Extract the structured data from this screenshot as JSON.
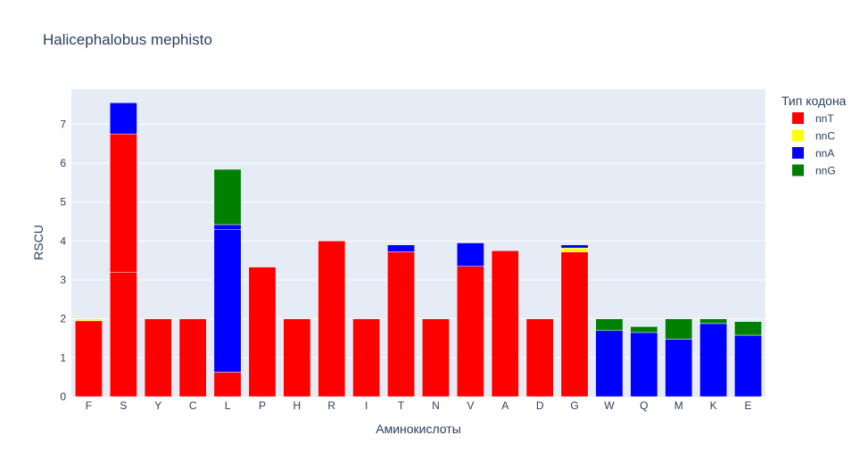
{
  "chart_data": {
    "type": "bar",
    "barmode": "stack",
    "title": "Halicephalobus mephisto",
    "xlabel": "Аминокислоты",
    "ylabel": "RSCU",
    "ylim": [
      0,
      7.9
    ],
    "yticks": [
      0,
      1,
      2,
      3,
      4,
      5,
      6,
      7
    ],
    "grid": true,
    "legend": {
      "title": "Тип кодона",
      "position": "top-right"
    },
    "categories": [
      "F",
      "S",
      "Y",
      "C",
      "L",
      "P",
      "H",
      "R",
      "I",
      "T",
      "N",
      "V",
      "A",
      "D",
      "G",
      "W",
      "Q",
      "M",
      "K",
      "E"
    ],
    "series": [
      {
        "name": "nnT",
        "color": "#ff0000",
        "segments": [
          [
            1.95
          ],
          [
            3.2,
            3.55
          ],
          [
            2.0
          ],
          [
            2.0
          ],
          [
            0.63
          ],
          [
            3.33
          ],
          [
            2.0
          ],
          [
            4.0
          ],
          [
            2.0
          ],
          [
            3.72
          ],
          [
            2.0
          ],
          [
            3.35
          ],
          [
            3.75
          ],
          [
            2.0
          ],
          [
            3.72
          ],
          [],
          [],
          [],
          [],
          []
        ]
      },
      {
        "name": "nnC",
        "color": "#ffff00",
        "segments": [
          [
            0.05
          ],
          [],
          [],
          [],
          [],
          [],
          [],
          [],
          [],
          [],
          [],
          [],
          [],
          [],
          [
            0.1
          ],
          [],
          [],
          [],
          [],
          []
        ]
      },
      {
        "name": "nnA",
        "color": "#0000ff",
        "segments": [
          [],
          [
            0.8
          ],
          [],
          [],
          [
            3.67,
            0.12
          ],
          [],
          [],
          [],
          [],
          [
            0.18
          ],
          [],
          [
            0.6
          ],
          [],
          [],
          [
            0.08
          ],
          [
            1.7
          ],
          [
            1.65
          ],
          [
            1.48
          ],
          [
            1.88
          ],
          [
            1.58
          ]
        ]
      },
      {
        "name": "nnG",
        "color": "#008000",
        "segments": [
          [],
          [],
          [],
          [],
          [
            1.42
          ],
          [],
          [],
          [],
          [],
          [],
          [],
          [],
          [],
          [],
          [],
          [
            0.3
          ],
          [
            0.15
          ],
          [
            0.52
          ],
          [
            0.12
          ],
          [
            0.35
          ]
        ]
      }
    ]
  }
}
